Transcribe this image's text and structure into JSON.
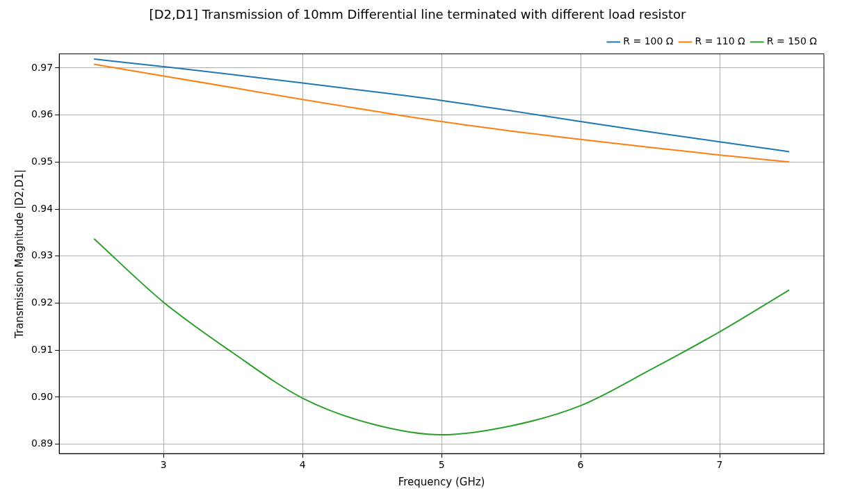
{
  "chart_data": {
    "type": "line",
    "title": "[D2,D1] Transmission of 10mm Differential line terminated with different load resistor",
    "xlabel": "Frequency (GHz)",
    "ylabel": "Transmission Magnitude |D2,D1|",
    "x": [
      2.5,
      3,
      3.5,
      4,
      4.5,
      5,
      5.5,
      6,
      6.5,
      7,
      7.5
    ],
    "series": [
      {
        "name": "R = 100 Ω",
        "color": "#1f77b4",
        "values": [
          0.9719,
          0.9703,
          0.9686,
          0.9668,
          0.965,
          0.9631,
          0.9609,
          0.9586,
          0.9564,
          0.9543,
          0.9522
        ]
      },
      {
        "name": "R = 110 Ω",
        "color": "#ff7f0e",
        "values": [
          0.9708,
          0.9683,
          0.9658,
          0.9633,
          0.9609,
          0.9586,
          0.9566,
          0.9548,
          0.9531,
          0.9515,
          0.95
        ]
      },
      {
        "name": "R = 150 Ω",
        "color": "#2ca02c",
        "values": [
          0.9337,
          0.9202,
          0.9094,
          0.8998,
          0.8943,
          0.892,
          0.8939,
          0.8982,
          0.9058,
          0.9139,
          0.9228
        ]
      }
    ],
    "xlim": [
      2.25,
      7.75
    ],
    "ylim": [
      0.888,
      0.973
    ],
    "xticks": [
      3,
      4,
      5,
      6,
      7
    ],
    "yticks": [
      0.89,
      {
        "value": 0.9,
        "label": "0.90"
      },
      0.91,
      0.92,
      0.93,
      0.94,
      0.95,
      0.96,
      0.97
    ],
    "grid": true,
    "legend": "top right",
    "marker": "none",
    "line_style": "solid"
  }
}
